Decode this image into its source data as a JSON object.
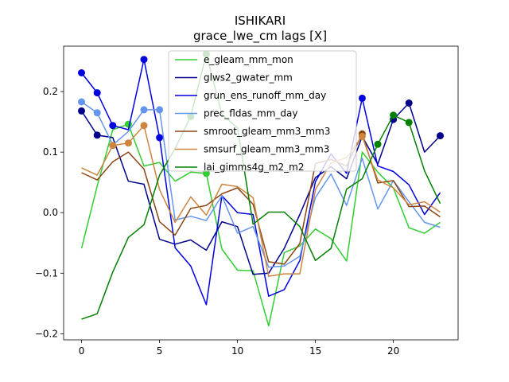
{
  "chart_data": {
    "type": "line",
    "title": "ISHIKARI",
    "subtitle": "grace_lwe_cm lags [X]",
    "xlabel": "",
    "ylabel": "",
    "xlim": [
      -1.15,
      24.15
    ],
    "ylim": [
      -0.21,
      0.275
    ],
    "x_ticks": [
      0,
      5,
      10,
      15,
      20
    ],
    "y_ticks": [
      -0.2,
      -0.1,
      0.0,
      0.1,
      0.2
    ],
    "y_tick_labels": [
      "−0.2",
      "−0.1",
      "0.0",
      "0.1",
      "0.2"
    ],
    "grid": false,
    "legend_position": "top-center",
    "x": [
      0,
      1,
      2,
      3,
      4,
      5,
      6,
      7,
      8,
      9,
      10,
      11,
      12,
      13,
      14,
      15,
      16,
      17,
      18,
      19,
      20,
      21,
      22,
      23
    ],
    "series": [
      {
        "name": "e_gleam_mm_mon",
        "color": "#32cd32",
        "values": [
          -0.059,
          0.044,
          0.137,
          0.146,
          0.077,
          0.083,
          0.052,
          0.067,
          0.065,
          -0.06,
          -0.095,
          -0.096,
          -0.187,
          -0.066,
          -0.055,
          -0.027,
          -0.043,
          -0.08,
          0.1,
          0.067,
          0.041,
          -0.025,
          -0.034,
          -0.016
        ],
        "markers": [
          3,
          8
        ]
      },
      {
        "name": "glws2_gwater_mm",
        "color": "#00008b",
        "values": [
          0.168,
          0.128,
          0.124,
          0.052,
          0.047,
          -0.044,
          -0.052,
          -0.045,
          -0.062,
          -0.015,
          -0.023,
          -0.102,
          -0.1,
          -0.059,
          -0.003,
          0.058,
          0.076,
          0.056,
          0.126,
          0.08,
          0.154,
          0.181,
          0.1,
          0.127
        ],
        "markers": [
          0,
          1,
          20,
          21,
          23
        ]
      },
      {
        "name": "grun_ens_runoff_mm_day",
        "color": "#0000e0",
        "values": [
          0.231,
          0.198,
          0.144,
          0.137,
          0.253,
          0.124,
          -0.058,
          -0.088,
          -0.152,
          0.028,
          0.0,
          -0.003,
          -0.138,
          -0.127,
          -0.079,
          0.051,
          0.097,
          0.065,
          0.189,
          0.077,
          0.068,
          0.046,
          -0.003,
          0.033
        ],
        "markers": [
          0,
          1,
          2,
          4,
          5,
          18
        ]
      },
      {
        "name": "prec_fldas_mm_day",
        "color": "#6495ed",
        "values": [
          0.183,
          0.165,
          0.112,
          0.134,
          0.17,
          0.17,
          -0.012,
          -0.006,
          -0.013,
          0.028,
          -0.034,
          -0.023,
          -0.09,
          -0.088,
          -0.072,
          0.025,
          0.064,
          0.012,
          0.09,
          0.006,
          0.053,
          0.018,
          -0.016,
          -0.024
        ],
        "markers": [
          0,
          1,
          4,
          5
        ]
      },
      {
        "name": "smroot_gleam_mm3_mm3",
        "color": "#8b4513",
        "values": [
          0.066,
          0.054,
          0.084,
          0.1,
          0.072,
          -0.015,
          -0.037,
          0.007,
          0.012,
          0.031,
          0.041,
          0.014,
          -0.081,
          -0.085,
          -0.051,
          0.081,
          0.088,
          0.077,
          0.13,
          0.049,
          0.053,
          0.01,
          0.011,
          -0.007
        ],
        "markers": [
          18
        ]
      },
      {
        "name": "smsurf_gleam_mm3_mm3",
        "color": "#cd853f",
        "values": [
          0.074,
          0.062,
          0.111,
          0.115,
          0.144,
          0.038,
          -0.016,
          0.026,
          -0.004,
          0.047,
          0.043,
          0.025,
          -0.105,
          -0.101,
          -0.101,
          0.038,
          0.082,
          0.091,
          0.126,
          0.054,
          0.041,
          0.013,
          0.018,
          0.001
        ],
        "markers": [
          2,
          3,
          4,
          18
        ]
      },
      {
        "name": "lai_gimms4g_m2_m2",
        "color": "#008000",
        "values": [
          -0.176,
          -0.167,
          -0.098,
          -0.041,
          -0.02,
          0.062,
          0.106,
          0.159,
          0.262,
          0.162,
          0.14,
          -0.019,
          0.001,
          0.001,
          -0.023,
          -0.079,
          -0.059,
          0.039,
          0.056,
          0.113,
          0.161,
          0.149,
          0.069,
          0.015
        ],
        "markers": [
          7,
          8,
          19,
          20,
          21
        ]
      }
    ]
  }
}
